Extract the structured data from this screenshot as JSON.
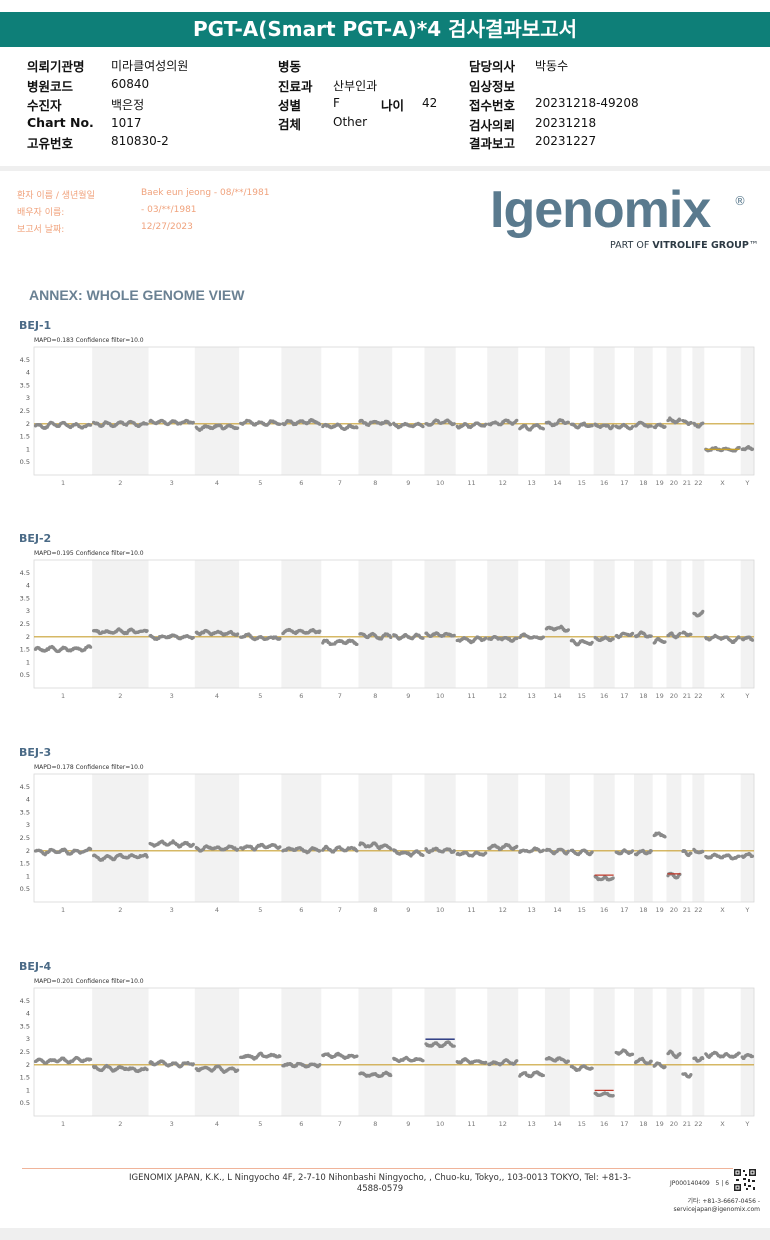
{
  "title": "PGT-A(Smart PGT-A)*4 검사결과보고서",
  "info": {
    "col1": [
      {
        "label": "의뢰기관명",
        "value": "미라클여성의원"
      },
      {
        "label": "병원코드",
        "value": "60840"
      },
      {
        "label": "수진자",
        "value": "백은정"
      },
      {
        "label": "Chart No.",
        "value": "1017"
      },
      {
        "label": "고유번호",
        "value": "810830-2"
      }
    ],
    "col2": [
      {
        "label": "병동",
        "value": ""
      },
      {
        "label": "진료과",
        "value": "산부인과"
      },
      {
        "label": "성별",
        "value": "F"
      },
      {
        "label": "검체",
        "value": "Other"
      }
    ],
    "age": {
      "label": "나이",
      "value": "42"
    },
    "col3": [
      {
        "label": "담당의사",
        "value": "박동수"
      },
      {
        "label": "임상정보",
        "value": ""
      },
      {
        "label": "접수번호",
        "value": "20231218-49208"
      },
      {
        "label": "검사의뢰",
        "value": "20231218"
      },
      {
        "label": "결과보고",
        "value": "20231227"
      }
    ]
  },
  "patient": {
    "labels": [
      "환자 이름 / 생년월일",
      "배우자 이름:",
      "보고서 날짜:"
    ],
    "values": [
      "Baek eun jeong - 08/**/1981",
      " - 03/**/1981",
      "12/27/2023"
    ]
  },
  "logo": {
    "name": "Igenomix",
    "reg": "®",
    "tagline_prefix": "PART OF",
    "tagline_brand": "VITROLIFE GROUP",
    "tagline_tm": "™",
    "color": "#5a7a8e"
  },
  "annex_title": "ANNEX: WHOLE GENOME VIEW",
  "chart_data": [
    {
      "type": "scatter",
      "sample": "BEJ-1",
      "subtitle": "MAPD=0.183 Confidence filter=10.0",
      "yticks": [
        0.5,
        1,
        1.5,
        2,
        2.5,
        3,
        3.5,
        4,
        4.5
      ],
      "ylim": [
        0,
        5
      ],
      "baseline": 2,
      "segments": [
        {
          "chr": "1",
          "value": 1.95
        },
        {
          "chr": "2",
          "value": 2.0
        },
        {
          "chr": "3",
          "value": 2.05
        },
        {
          "chr": "4",
          "value": 1.85
        },
        {
          "chr": "5",
          "value": 2.05
        },
        {
          "chr": "6",
          "value": 2.05
        },
        {
          "chr": "7",
          "value": 1.9
        },
        {
          "chr": "8",
          "value": 2.05
        },
        {
          "chr": "9",
          "value": 1.95
        },
        {
          "chr": "10",
          "value": 2.0
        },
        {
          "chr": "11",
          "value": 1.95
        },
        {
          "chr": "12",
          "value": 2.05
        },
        {
          "chr": "13",
          "value": 1.85
        },
        {
          "chr": "14",
          "value": 2.0
        },
        {
          "chr": "15",
          "value": 1.95
        },
        {
          "chr": "16",
          "value": 1.95
        },
        {
          "chr": "17",
          "value": 1.9
        },
        {
          "chr": "18",
          "value": 1.95
        },
        {
          "chr": "19",
          "value": 1.9
        },
        {
          "chr": "20",
          "value": 2.1
        },
        {
          "chr": "21",
          "value": 2.05
        },
        {
          "chr": "22",
          "value": 1.95
        },
        {
          "chr": "X",
          "value": 1.0
        },
        {
          "chr": "Y",
          "value": 1.05
        }
      ],
      "calls": [
        {
          "chr": "X",
          "value": 1.0,
          "color": "#c8a028"
        }
      ]
    },
    {
      "type": "scatter",
      "sample": "BEJ-2",
      "subtitle": "MAPD=0.195 Confidence filter=10.0",
      "yticks": [
        0.5,
        1,
        1.5,
        2,
        2.5,
        3,
        3.5,
        4,
        4.5
      ],
      "ylim": [
        0,
        5
      ],
      "baseline": 2,
      "segments": [
        {
          "chr": "1",
          "value": 1.55
        },
        {
          "chr": "2",
          "value": 2.2
        },
        {
          "chr": "3",
          "value": 2.0
        },
        {
          "chr": "4",
          "value": 2.15
        },
        {
          "chr": "5",
          "value": 2.0
        },
        {
          "chr": "6",
          "value": 2.2
        },
        {
          "chr": "7",
          "value": 1.8
        },
        {
          "chr": "8",
          "value": 2.05
        },
        {
          "chr": "9",
          "value": 2.0
        },
        {
          "chr": "10",
          "value": 2.1
        },
        {
          "chr": "11",
          "value": 1.9
        },
        {
          "chr": "12",
          "value": 1.95
        },
        {
          "chr": "13",
          "value": 2.0
        },
        {
          "chr": "14",
          "value": 2.3
        },
        {
          "chr": "15",
          "value": 1.8
        },
        {
          "chr": "16",
          "value": 1.95
        },
        {
          "chr": "17",
          "value": 2.05
        },
        {
          "chr": "18",
          "value": 2.05
        },
        {
          "chr": "19",
          "value": 1.8
        },
        {
          "chr": "20",
          "value": 2.05
        },
        {
          "chr": "21",
          "value": 2.1
        },
        {
          "chr": "22",
          "value": 2.9
        },
        {
          "chr": "X",
          "value": 1.95
        },
        {
          "chr": "Y",
          "value": 1.95
        }
      ],
      "calls": []
    },
    {
      "type": "scatter",
      "sample": "BEJ-3",
      "subtitle": "MAPD=0.178 Confidence filter=10.0",
      "yticks": [
        0.5,
        1,
        1.5,
        2,
        2.5,
        3,
        3.5,
        4,
        4.5
      ],
      "ylim": [
        0,
        5
      ],
      "baseline": 2,
      "segments": [
        {
          "chr": "1",
          "value": 2.0
        },
        {
          "chr": "2",
          "value": 1.75
        },
        {
          "chr": "3",
          "value": 2.25
        },
        {
          "chr": "4",
          "value": 2.1
        },
        {
          "chr": "5",
          "value": 2.15
        },
        {
          "chr": "6",
          "value": 2.05
        },
        {
          "chr": "7",
          "value": 2.05
        },
        {
          "chr": "8",
          "value": 2.2
        },
        {
          "chr": "9",
          "value": 1.95
        },
        {
          "chr": "10",
          "value": 2.05
        },
        {
          "chr": "11",
          "value": 1.9
        },
        {
          "chr": "12",
          "value": 2.15
        },
        {
          "chr": "13",
          "value": 2.0
        },
        {
          "chr": "14",
          "value": 2.0
        },
        {
          "chr": "15",
          "value": 1.95
        },
        {
          "chr": "16",
          "value": 0.95
        },
        {
          "chr": "17",
          "value": 1.95
        },
        {
          "chr": "18",
          "value": 1.95
        },
        {
          "chr": "19",
          "value": 2.6
        },
        {
          "chr": "20",
          "value": 1.05
        },
        {
          "chr": "21",
          "value": 1.95
        },
        {
          "chr": "22",
          "value": 2.0
        },
        {
          "chr": "X",
          "value": 1.8
        },
        {
          "chr": "Y",
          "value": 1.85
        }
      ],
      "calls": [
        {
          "chr": "16",
          "value": 1.05,
          "color": "#c0392b"
        },
        {
          "chr": "20",
          "value": 1.1,
          "color": "#c0392b"
        }
      ]
    },
    {
      "type": "scatter",
      "sample": "BEJ-4",
      "subtitle": "MAPD=0.201 Confidence filter=10.0",
      "yticks": [
        0.5,
        1,
        1.5,
        2,
        2.5,
        3,
        3.5,
        4,
        4.5
      ],
      "ylim": [
        0,
        5
      ],
      "baseline": 2,
      "segments": [
        {
          "chr": "1",
          "value": 2.15
        },
        {
          "chr": "2",
          "value": 1.85
        },
        {
          "chr": "3",
          "value": 2.05
        },
        {
          "chr": "4",
          "value": 1.85
        },
        {
          "chr": "5",
          "value": 2.35
        },
        {
          "chr": "6",
          "value": 2.0
        },
        {
          "chr": "7",
          "value": 2.35
        },
        {
          "chr": "8",
          "value": 1.6
        },
        {
          "chr": "9",
          "value": 2.2
        },
        {
          "chr": "10",
          "value": 2.8
        },
        {
          "chr": "11",
          "value": 2.15
        },
        {
          "chr": "12",
          "value": 2.1
        },
        {
          "chr": "13",
          "value": 1.6
        },
        {
          "chr": "14",
          "value": 2.2
        },
        {
          "chr": "15",
          "value": 1.85
        },
        {
          "chr": "16",
          "value": 0.85
        },
        {
          "chr": "17",
          "value": 2.5
        },
        {
          "chr": "18",
          "value": 2.15
        },
        {
          "chr": "19",
          "value": 2.0
        },
        {
          "chr": "20",
          "value": 2.4
        },
        {
          "chr": "21",
          "value": 1.6
        },
        {
          "chr": "22",
          "value": 2.2
        },
        {
          "chr": "X",
          "value": 2.4
        },
        {
          "chr": "Y",
          "value": 2.35
        }
      ],
      "calls": [
        {
          "chr": "10",
          "value": 3.0,
          "color": "#1a2a78"
        },
        {
          "chr": "16",
          "value": 1.0,
          "color": "#c0392b"
        }
      ]
    }
  ],
  "chromosomes": [
    "1",
    "2",
    "3",
    "4",
    "5",
    "6",
    "7",
    "8",
    "9",
    "10",
    "11",
    "12",
    "13",
    "14",
    "15",
    "16",
    "17",
    "18",
    "19",
    "20",
    "21",
    "22",
    "X",
    "Y"
  ],
  "footer": {
    "address": "IGENOMIX JAPAN, K.K., L Ningyocho 4F, 2-7-10 Nihonbashi Ningyocho, , Chuo-ku, Tokyo,, 103-0013 TOKYO, Tel: +81-3-4588-0579",
    "doc_id": "JP000140409",
    "page": "5 | 6",
    "contact_line1": "기타: +81-3-6667-0456  -",
    "contact_line2": "servicejapan@igenomix.com"
  }
}
